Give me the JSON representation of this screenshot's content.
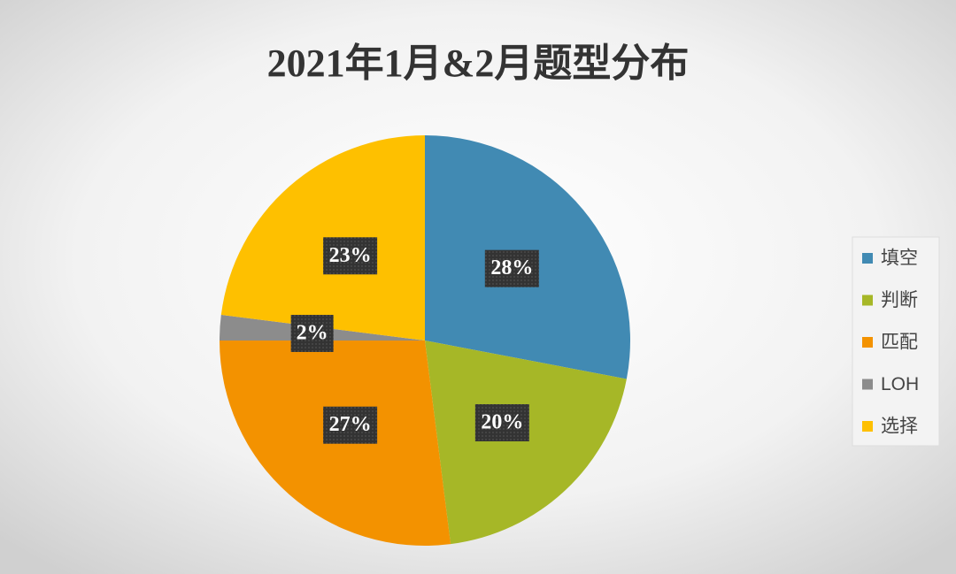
{
  "chart_data": {
    "type": "pie",
    "title": "2021年1月&2月题型分布",
    "categories": [
      "填空",
      "判断",
      "匹配",
      "LOH",
      "选择"
    ],
    "values": [
      28,
      20,
      27,
      2,
      23
    ],
    "value_labels": [
      "28%",
      "20%",
      "27%",
      "2%",
      "23%"
    ],
    "colors": [
      "#418ab3",
      "#a6b727",
      "#f39200",
      "#8c8c8c",
      "#fec000"
    ],
    "legend": "right"
  }
}
